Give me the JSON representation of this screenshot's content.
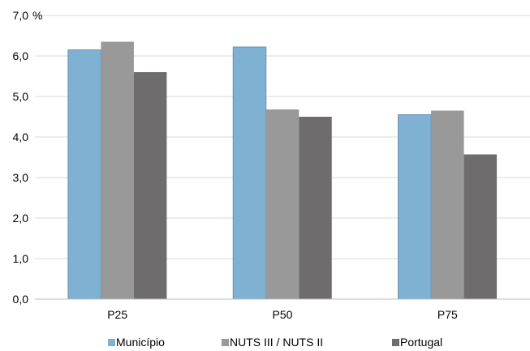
{
  "chart_data": {
    "type": "bar",
    "unit_label": "%",
    "categories": [
      "P25",
      "P50",
      "P75"
    ],
    "series": [
      {
        "name": "Município",
        "values": [
          6.15,
          6.22,
          4.55
        ],
        "color": "#7fb1d3"
      },
      {
        "name": "NUTS III / NUTS II",
        "values": [
          6.35,
          4.68,
          4.65
        ],
        "color": "#999999"
      },
      {
        "name": "Portugal",
        "values": [
          5.6,
          4.5,
          3.57
        ],
        "color": "#6e6c6d"
      }
    ],
    "ylim": [
      0,
      7
    ],
    "yticks": [
      "0,0",
      "1,0",
      "2,0",
      "3,0",
      "4,0",
      "5,0",
      "6,0",
      "7,0"
    ],
    "grid": true,
    "legend_position": "bottom"
  }
}
